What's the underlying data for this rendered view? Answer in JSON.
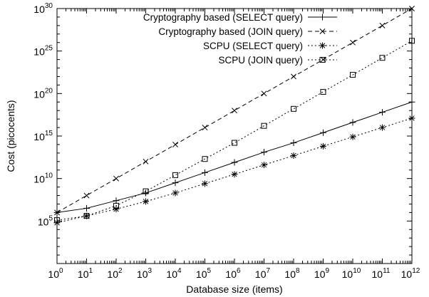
{
  "chart_data": {
    "type": "line",
    "title": "",
    "xlabel": "Database size (items)",
    "ylabel": "Cost (picocents)",
    "x_scale": "log",
    "y_scale": "log",
    "x_exponents": [
      0,
      1,
      2,
      3,
      4,
      5,
      6,
      7,
      8,
      9,
      10,
      11,
      12
    ],
    "xlim_exponents": [
      0,
      12
    ],
    "ylim_exponents": [
      0,
      30
    ],
    "x_tick_labels": [
      {
        "base": "10",
        "exp": "0"
      },
      {
        "base": "10",
        "exp": "1"
      },
      {
        "base": "10",
        "exp": "2"
      },
      {
        "base": "10",
        "exp": "3"
      },
      {
        "base": "10",
        "exp": "4"
      },
      {
        "base": "10",
        "exp": "5"
      },
      {
        "base": "10",
        "exp": "6"
      },
      {
        "base": "10",
        "exp": "7"
      },
      {
        "base": "10",
        "exp": "8"
      },
      {
        "base": "10",
        "exp": "9"
      },
      {
        "base": "10",
        "exp": "10"
      },
      {
        "base": "10",
        "exp": "11"
      },
      {
        "base": "10",
        "exp": "12"
      }
    ],
    "y_tick_labels": [
      {
        "value_exp": 5,
        "base": "10",
        "exp": "5"
      },
      {
        "value_exp": 10,
        "base": "10",
        "exp": "10"
      },
      {
        "value_exp": 15,
        "base": "10",
        "exp": "15"
      },
      {
        "value_exp": 20,
        "base": "10",
        "exp": "20"
      },
      {
        "value_exp": 25,
        "base": "10",
        "exp": "25"
      },
      {
        "value_exp": 30,
        "base": "10",
        "exp": "30"
      }
    ],
    "grid": false,
    "legend_position": "top-left",
    "series": [
      {
        "name": "Cryptography based (SELECT query)",
        "marker": "plus",
        "dash": "solid",
        "y_exponents": [
          6.0,
          6.5,
          7.4,
          8.3,
          9.5,
          10.7,
          11.9,
          13.1,
          14.2,
          15.4,
          16.6,
          17.8,
          19.0
        ]
      },
      {
        "name": "Cryptography based (JOIN query)",
        "marker": "x",
        "dash": "dashed",
        "y_exponents": [
          6.0,
          8.0,
          10.0,
          12.0,
          14.0,
          16.0,
          18.0,
          20.0,
          22.0,
          24.0,
          26.0,
          28.0,
          30.0
        ]
      },
      {
        "name": "SCPU (SELECT query)",
        "marker": "asterisk",
        "dash": "dotted",
        "y_exponents": [
          4.8,
          5.6,
          6.4,
          7.3,
          8.3,
          9.4,
          10.5,
          11.6,
          12.7,
          13.8,
          14.9,
          16.0,
          17.1
        ]
      },
      {
        "name": "SCPU (JOIN query)",
        "marker": "square",
        "dash": "dotted",
        "y_exponents": [
          5.1,
          5.6,
          6.8,
          8.5,
          10.4,
          12.3,
          14.2,
          16.2,
          18.2,
          20.2,
          22.2,
          24.2,
          26.2
        ]
      }
    ]
  }
}
